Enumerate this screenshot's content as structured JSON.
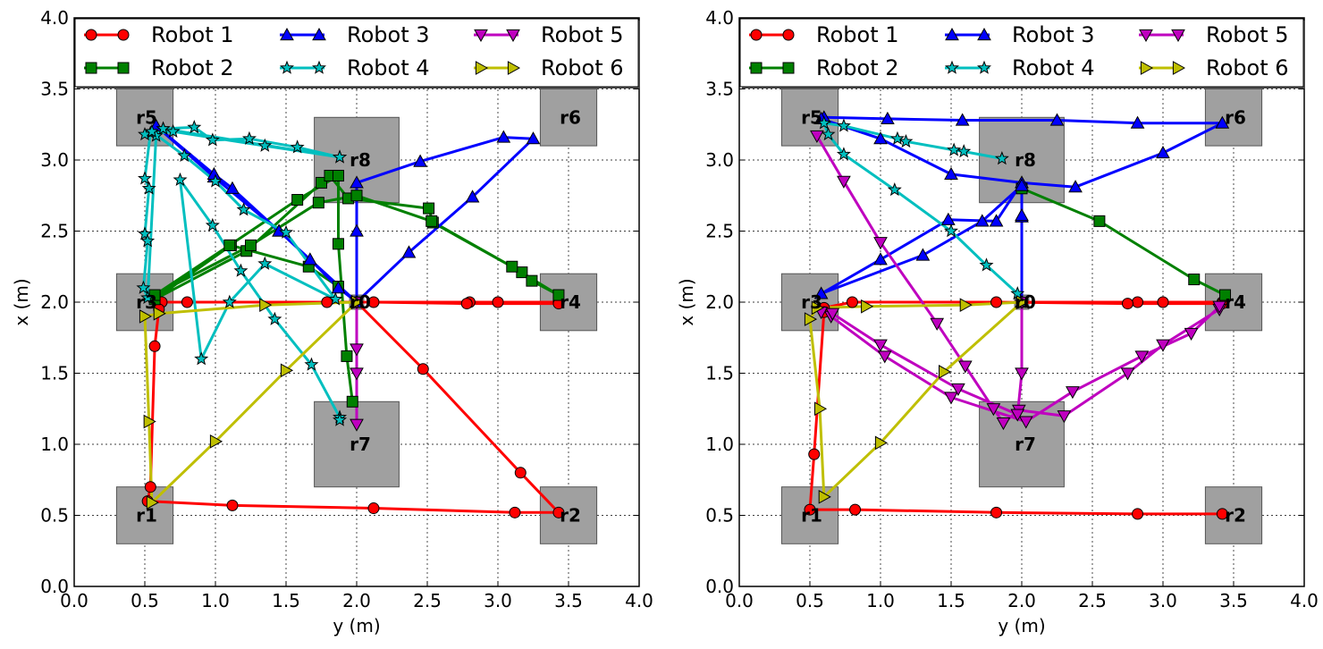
{
  "chart_data": [
    {
      "type": "line",
      "xlabel": "y (m)",
      "ylabel": "x (m)",
      "xlim": [
        0,
        4
      ],
      "ylim": [
        0,
        4
      ],
      "x_ticks": [
        "0.0",
        "0.5",
        "1.0",
        "1.5",
        "2.0",
        "2.5",
        "3.0",
        "3.5",
        "4.0"
      ],
      "y_ticks": [
        "0.0",
        "0.5",
        "1.0",
        "1.5",
        "2.0",
        "2.5",
        "3.0",
        "3.5",
        "4.0"
      ],
      "grid": true,
      "legend": "top",
      "regions": [
        {
          "label": "r1",
          "cx": 0.5,
          "cy": 0.5,
          "w": 0.4,
          "h": 0.4
        },
        {
          "label": "r2",
          "cx": 3.5,
          "cy": 0.5,
          "w": 0.4,
          "h": 0.4
        },
        {
          "label": "r3",
          "cx": 0.5,
          "cy": 2.0,
          "w": 0.4,
          "h": 0.4
        },
        {
          "label": "r4",
          "cx": 3.5,
          "cy": 2.0,
          "w": 0.4,
          "h": 0.4
        },
        {
          "label": "r5",
          "cx": 0.5,
          "cy": 3.3,
          "w": 0.4,
          "h": 0.4
        },
        {
          "label": "r6",
          "cx": 3.5,
          "cy": 3.3,
          "w": 0.4,
          "h": 0.4
        },
        {
          "label": "r7",
          "cx": 2.0,
          "cy": 1.0,
          "w": 0.6,
          "h": 0.6
        },
        {
          "label": "r8",
          "cx": 2.0,
          "cy": 3.0,
          "w": 0.6,
          "h": 0.6
        },
        {
          "label": "r0",
          "cx": 2.0,
          "cy": 2.0,
          "w": 0.1,
          "h": 0.1
        }
      ],
      "series": [
        {
          "name": "Robot 1",
          "color": "#ff0000",
          "marker": "circle",
          "points": [
            [
              2.0,
              2.0
            ],
            [
              2.8,
              2.0
            ],
            [
              3.0,
              2.0
            ],
            [
              3.43,
              2.0
            ],
            [
              3.43,
              1.99
            ],
            [
              2.78,
              1.99
            ],
            [
              2.12,
              2.0
            ],
            [
              1.79,
              2.0
            ],
            [
              0.8,
              2.0
            ],
            [
              0.62,
              2.0
            ],
            [
              0.6,
              1.95
            ],
            [
              0.57,
              1.69
            ],
            [
              0.54,
              0.7
            ],
            [
              0.52,
              0.6
            ],
            [
              1.12,
              0.57
            ],
            [
              2.12,
              0.55
            ],
            [
              3.12,
              0.52
            ],
            [
              3.43,
              0.52
            ],
            [
              3.16,
              0.8
            ],
            [
              2.47,
              1.53
            ],
            [
              2.0,
              2.0
            ]
          ]
        },
        {
          "name": "Robot 2",
          "color": "#008000",
          "marker": "square",
          "points": [
            [
              2.0,
              2.0
            ],
            [
              1.87,
              2.11
            ],
            [
              1.66,
              2.25
            ],
            [
              1.11,
              2.4
            ],
            [
              0.57,
              2.02
            ],
            [
              1.22,
              2.36
            ],
            [
              1.75,
              2.84
            ],
            [
              1.81,
              2.89
            ],
            [
              1.94,
              2.73
            ],
            [
              2.51,
              2.66
            ],
            [
              2.54,
              2.56
            ],
            [
              3.17,
              2.21
            ],
            [
              3.24,
              2.15
            ],
            [
              3.43,
              2.05
            ],
            [
              3.1,
              2.25
            ],
            [
              2.53,
              2.57
            ],
            [
              2.0,
              2.75
            ],
            [
              1.73,
              2.7
            ],
            [
              1.25,
              2.4
            ],
            [
              0.57,
              2.05
            ],
            [
              1.1,
              2.4
            ],
            [
              1.58,
              2.72
            ],
            [
              1.87,
              2.89
            ],
            [
              1.87,
              2.41
            ],
            [
              1.93,
              1.62
            ],
            [
              1.97,
              1.3
            ]
          ]
        },
        {
          "name": "Robot 3",
          "color": "#0000ff",
          "marker": "triangle-up",
          "points": [
            [
              2.0,
              2.0
            ],
            [
              2.0,
              2.5
            ],
            [
              2.0,
              2.84
            ],
            [
              2.45,
              2.99
            ],
            [
              3.04,
              3.16
            ],
            [
              3.25,
              3.15
            ],
            [
              2.82,
              2.74
            ],
            [
              2.37,
              2.35
            ],
            [
              2.0,
              2.0
            ],
            [
              1.45,
              2.5
            ],
            [
              0.99,
              2.88
            ],
            [
              0.58,
              3.24
            ],
            [
              0.99,
              2.9
            ],
            [
              1.12,
              2.8
            ],
            [
              1.45,
              2.5
            ],
            [
              1.67,
              2.3
            ],
            [
              1.87,
              2.1
            ],
            [
              2.0,
              2.0
            ]
          ]
        },
        {
          "name": "Robot 4",
          "color": "#00bfbf",
          "marker": "star",
          "points": [
            [
              1.88,
              3.02
            ],
            [
              1.58,
              3.09
            ],
            [
              1.24,
              3.15
            ],
            [
              0.98,
              3.14
            ],
            [
              0.85,
              3.23
            ],
            [
              0.63,
              3.22
            ],
            [
              0.54,
              3.19
            ],
            [
              0.5,
              2.87
            ],
            [
              0.53,
              2.8
            ],
            [
              0.5,
              2.48
            ],
            [
              0.52,
              2.43
            ],
            [
              0.49,
              2.1
            ],
            [
              0.52,
              2.03
            ],
            [
              0.58,
              3.17
            ],
            [
              0.63,
              3.22
            ],
            [
              1.88,
              3.02
            ],
            [
              1.35,
              3.1
            ],
            [
              0.7,
              3.2
            ],
            [
              0.5,
              3.18
            ],
            [
              0.55,
              3.2
            ],
            [
              0.78,
              3.03
            ],
            [
              1.0,
              2.85
            ],
            [
              1.2,
              2.65
            ],
            [
              1.5,
              2.49
            ],
            [
              1.85,
              2.02
            ],
            [
              1.35,
              2.27
            ],
            [
              1.1,
              2.0
            ],
            [
              0.9,
              1.6
            ],
            [
              0.75,
              2.86
            ],
            [
              0.98,
              2.54
            ],
            [
              1.18,
              2.22
            ],
            [
              1.42,
              1.88
            ],
            [
              1.68,
              1.56
            ],
            [
              1.88,
              1.19
            ],
            [
              1.88,
              1.17
            ]
          ]
        },
        {
          "name": "Robot 5",
          "color": "#bf00bf",
          "marker": "triangle-down",
          "points": [
            [
              2.0,
              2.0
            ],
            [
              2.0,
              1.67
            ],
            [
              2.0,
              1.5
            ],
            [
              2.0,
              1.14
            ]
          ]
        },
        {
          "name": "Robot 6",
          "color": "#bfbf00",
          "marker": "triangle-right",
          "points": [
            [
              2.0,
              2.0
            ],
            [
              1.35,
              1.98
            ],
            [
              0.6,
              1.92
            ],
            [
              0.5,
              1.9
            ],
            [
              0.53,
              1.16
            ],
            [
              0.55,
              0.59
            ],
            [
              1.0,
              1.02
            ],
            [
              1.5,
              1.52
            ],
            [
              2.0,
              2.0
            ]
          ]
        }
      ]
    },
    {
      "type": "line",
      "xlabel": "y (m)",
      "ylabel": "x (m)",
      "xlim": [
        0,
        4
      ],
      "ylim": [
        0,
        4
      ],
      "x_ticks": [
        "0.0",
        "0.5",
        "1.0",
        "1.5",
        "2.0",
        "2.5",
        "3.0",
        "3.5",
        "4.0"
      ],
      "y_ticks": [
        "0.0",
        "0.5",
        "1.0",
        "1.5",
        "2.0",
        "2.5",
        "3.0",
        "3.5",
        "4.0"
      ],
      "grid": true,
      "legend": "top",
      "regions": [
        {
          "label": "r1",
          "cx": 0.5,
          "cy": 0.5,
          "w": 0.4,
          "h": 0.4
        },
        {
          "label": "r2",
          "cx": 3.5,
          "cy": 0.5,
          "w": 0.4,
          "h": 0.4
        },
        {
          "label": "r3",
          "cx": 0.5,
          "cy": 2.0,
          "w": 0.4,
          "h": 0.4
        },
        {
          "label": "r4",
          "cx": 3.5,
          "cy": 2.0,
          "w": 0.4,
          "h": 0.4
        },
        {
          "label": "r5",
          "cx": 0.5,
          "cy": 3.3,
          "w": 0.4,
          "h": 0.4
        },
        {
          "label": "r6",
          "cx": 3.5,
          "cy": 3.3,
          "w": 0.4,
          "h": 0.4
        },
        {
          "label": "r7",
          "cx": 2.0,
          "cy": 1.0,
          "w": 0.6,
          "h": 0.6
        },
        {
          "label": "r8",
          "cx": 2.0,
          "cy": 3.0,
          "w": 0.6,
          "h": 0.6
        },
        {
          "label": "r0",
          "cx": 2.0,
          "cy": 2.0,
          "w": 0.1,
          "h": 0.1
        }
      ],
      "series": [
        {
          "name": "Robot 1",
          "color": "#ff0000",
          "marker": "circle",
          "points": [
            [
              2.0,
              2.0
            ],
            [
              2.82,
              2.0
            ],
            [
              3.0,
              2.0
            ],
            [
              3.42,
              2.0
            ],
            [
              3.42,
              1.99
            ],
            [
              2.75,
              1.99
            ],
            [
              1.82,
              2.0
            ],
            [
              0.8,
              2.0
            ],
            [
              0.6,
              1.96
            ],
            [
              0.6,
              1.93
            ],
            [
              0.53,
              0.93
            ],
            [
              0.5,
              0.54
            ],
            [
              0.82,
              0.54
            ],
            [
              1.82,
              0.52
            ],
            [
              2.82,
              0.51
            ],
            [
              3.42,
              0.51
            ]
          ]
        },
        {
          "name": "Robot 2",
          "color": "#008000",
          "marker": "square",
          "points": [
            [
              2.0,
              2.8
            ],
            [
              2.55,
              2.57
            ],
            [
              3.22,
              2.16
            ],
            [
              3.44,
              2.05
            ]
          ]
        },
        {
          "name": "Robot 3",
          "color": "#0000ff",
          "marker": "triangle-up",
          "points": [
            [
              2.0,
              2.0
            ],
            [
              2.0,
              2.6
            ],
            [
              2.0,
              2.84
            ],
            [
              2.38,
              2.81
            ],
            [
              3.0,
              3.05
            ],
            [
              3.42,
              3.26
            ],
            [
              2.82,
              3.26
            ],
            [
              2.25,
              3.28
            ],
            [
              1.58,
              3.28
            ],
            [
              1.05,
              3.29
            ],
            [
              0.6,
              3.3
            ],
            [
              0.58,
              3.29
            ],
            [
              1.0,
              3.15
            ],
            [
              1.5,
              2.9
            ],
            [
              2.0,
              2.84
            ],
            [
              1.82,
              2.57
            ],
            [
              1.48,
              2.58
            ],
            [
              1.0,
              2.3
            ],
            [
              0.58,
              2.06
            ],
            [
              1.3,
              2.33
            ],
            [
              1.72,
              2.57
            ],
            [
              2.0,
              2.82
            ],
            [
              2.0,
              2.61
            ],
            [
              2.0,
              2.0
            ]
          ]
        },
        {
          "name": "Robot 4",
          "color": "#00bfbf",
          "marker": "star",
          "points": [
            [
              1.86,
              3.01
            ],
            [
              1.59,
              3.06
            ],
            [
              1.52,
              3.07
            ],
            [
              1.18,
              3.13
            ],
            [
              1.12,
              3.15
            ],
            [
              0.74,
              3.24
            ],
            [
              0.6,
              3.26
            ],
            [
              0.63,
              3.18
            ],
            [
              0.74,
              3.04
            ],
            [
              1.1,
              2.79
            ],
            [
              1.5,
              2.5
            ],
            [
              1.75,
              2.26
            ],
            [
              1.97,
              2.06
            ],
            [
              2.0,
              2.0
            ]
          ]
        },
        {
          "name": "Robot 5",
          "color": "#bf00bf",
          "marker": "triangle-down",
          "points": [
            [
              0.55,
              3.17
            ],
            [
              0.74,
              2.85
            ],
            [
              1.0,
              2.42
            ],
            [
              1.4,
              1.85
            ],
            [
              1.6,
              1.55
            ],
            [
              1.8,
              1.25
            ],
            [
              1.87,
              1.15
            ],
            [
              1.98,
              1.24
            ],
            [
              2.3,
              1.2
            ],
            [
              2.75,
              1.5
            ],
            [
              3.0,
              1.7
            ],
            [
              3.4,
              1.95
            ],
            [
              3.4,
              1.97
            ],
            [
              3.2,
              1.78
            ],
            [
              2.85,
              1.62
            ],
            [
              2.36,
              1.37
            ],
            [
              2.03,
              1.16
            ],
            [
              1.5,
              1.33
            ],
            [
              1.03,
              1.62
            ],
            [
              0.65,
              1.9
            ],
            [
              0.58,
              1.93
            ],
            [
              0.66,
              1.92
            ],
            [
              1.0,
              1.7
            ],
            [
              1.55,
              1.39
            ],
            [
              1.97,
              1.21
            ],
            [
              2.0,
              1.5
            ],
            [
              2.0,
              2.0
            ]
          ]
        },
        {
          "name": "Robot 6",
          "color": "#bfbf00",
          "marker": "triangle-right",
          "points": [
            [
              2.0,
              2.0
            ],
            [
              1.6,
              1.98
            ],
            [
              0.9,
              1.97
            ],
            [
              0.55,
              1.96
            ],
            [
              0.5,
              1.88
            ],
            [
              0.57,
              1.25
            ],
            [
              0.6,
              0.63
            ],
            [
              1.0,
              1.01
            ],
            [
              1.45,
              1.51
            ],
            [
              2.0,
              2.0
            ]
          ]
        }
      ]
    }
  ]
}
